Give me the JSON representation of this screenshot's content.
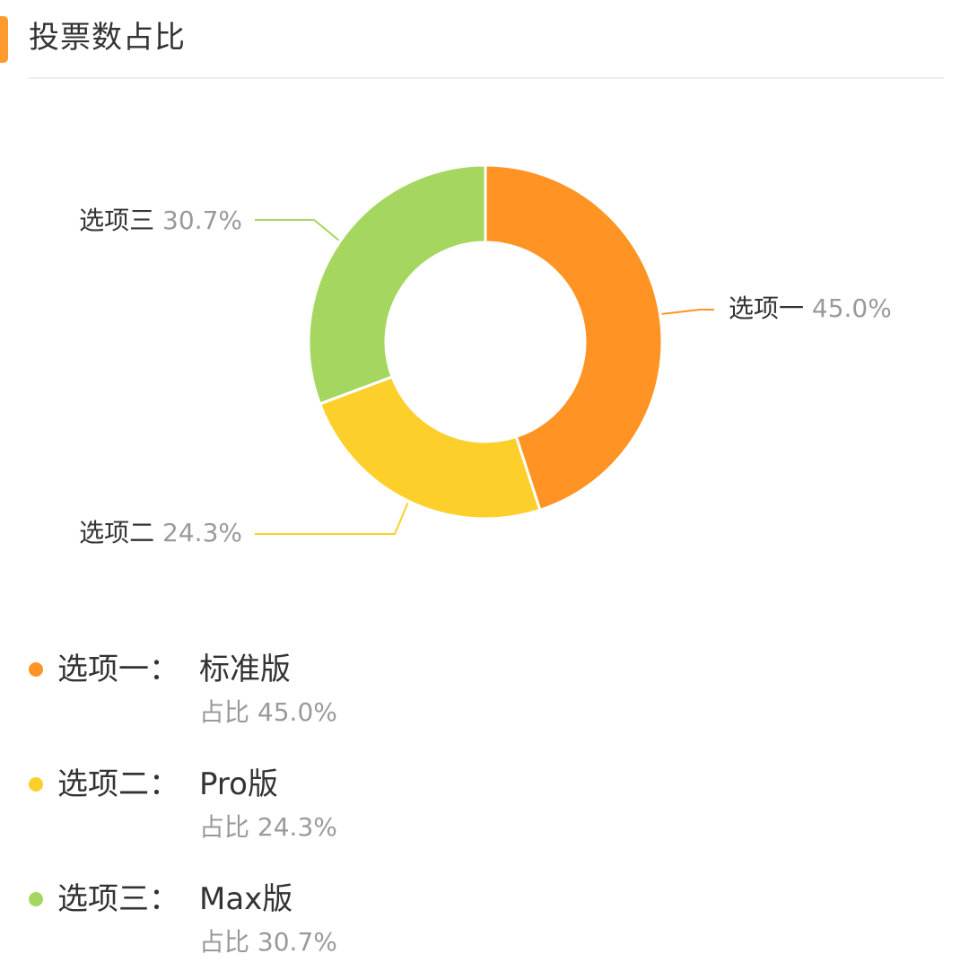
{
  "header": {
    "title": "投票数占比"
  },
  "colors": {
    "accent": "#ff9a2e",
    "option1": "#ff9424",
    "option2": "#fdcf2b",
    "option3": "#a5d660",
    "label_text": "#333333",
    "percent_text": "#9a9a9a"
  },
  "chart_data": {
    "type": "pie",
    "title": "投票数占比",
    "donut": true,
    "categories": [
      "选项一",
      "选项二",
      "选项三"
    ],
    "values": [
      45.0,
      24.3,
      30.7
    ],
    "labels": [
      "45.0%",
      "24.3%",
      "30.7%"
    ]
  },
  "legend": [
    {
      "name": "选项一：",
      "value": "标准版",
      "share_prefix": "占比",
      "share": "45.0%"
    },
    {
      "name": "选项二：",
      "value": "Pro版",
      "share_prefix": "占比",
      "share": "24.3%"
    },
    {
      "name": "选项三：",
      "value": "Max版",
      "share_prefix": "占比",
      "share": "30.7%"
    }
  ]
}
